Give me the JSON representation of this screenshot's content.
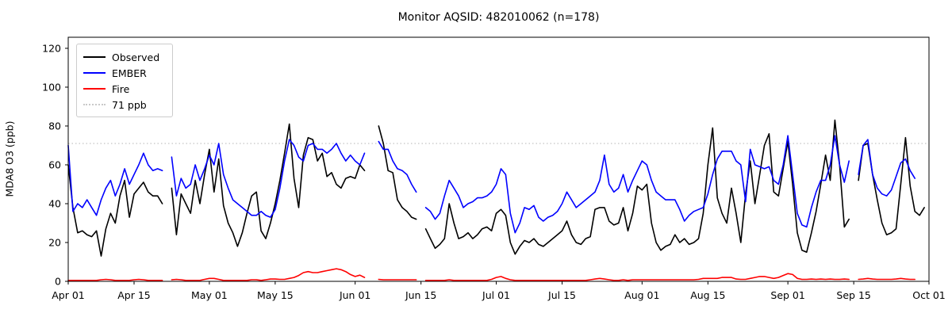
{
  "title": "Monitor AQSID: 482010062 (n=178)",
  "axes": {
    "ylabel": "MDA8 O3 (ppb)",
    "yticks": [
      0,
      20,
      40,
      60,
      80,
      100,
      120
    ],
    "ylim": [
      0,
      125.7
    ],
    "xlim_days": [
      0,
      183
    ]
  },
  "legend": {
    "items": [
      {
        "label": "Observed",
        "color": "#000000",
        "dash": "solid"
      },
      {
        "label": "EMBER",
        "color": "#0000ff",
        "dash": "solid"
      },
      {
        "label": "Fire",
        "color": "#ff0000",
        "dash": "solid"
      },
      {
        "label": "71 ppb",
        "color": "#c9c9c9",
        "dash": "dotted"
      }
    ]
  },
  "chart_data": {
    "type": "line",
    "title": "Monitor AQSID: 482010062 (n=178)",
    "xlabel": "",
    "ylabel": "MDA8 O3 (ppb)",
    "x_unit": "days since Apr 01",
    "xticks": [
      {
        "day": 0,
        "label": "Apr 01"
      },
      {
        "day": 14,
        "label": "Apr 15"
      },
      {
        "day": 30,
        "label": "May 01"
      },
      {
        "day": 44,
        "label": "May 15"
      },
      {
        "day": 61,
        "label": "Jun 01"
      },
      {
        "day": 75,
        "label": "Jun 15"
      },
      {
        "day": 91,
        "label": "Jul 01"
      },
      {
        "day": 105,
        "label": "Jul 15"
      },
      {
        "day": 122,
        "label": "Aug 01"
      },
      {
        "day": 136,
        "label": "Aug 15"
      },
      {
        "day": 153,
        "label": "Sep 01"
      },
      {
        "day": 167,
        "label": "Sep 15"
      },
      {
        "day": 183,
        "label": "Oct 01"
      }
    ],
    "threshold": {
      "value": 71,
      "label": "71 ppb",
      "color": "#c9c9c9",
      "style": "dotted"
    },
    "n_observed": 178,
    "series": [
      {
        "name": "Observed",
        "color": "#000000",
        "width": 1.6,
        "values": [
          60,
          38,
          25,
          26,
          24,
          23,
          26,
          13,
          27,
          35,
          30,
          44,
          52,
          33,
          45,
          48,
          51,
          46,
          44,
          44,
          40,
          null,
          48,
          24,
          45,
          40,
          35,
          52,
          40,
          55,
          68,
          46,
          63,
          39,
          30,
          25,
          18,
          25,
          35,
          44,
          46,
          26,
          22,
          30,
          40,
          52,
          66,
          81,
          53,
          38,
          65,
          74,
          73,
          62,
          66,
          54,
          56,
          50,
          48,
          53,
          54,
          53,
          60,
          57,
          null,
          null,
          80,
          71,
          57,
          56,
          42,
          38,
          36,
          33,
          32,
          null,
          27,
          22,
          17,
          19,
          22,
          40,
          30,
          22,
          23,
          25,
          22,
          24,
          27,
          28,
          26,
          35,
          37,
          34,
          20,
          14,
          18,
          21,
          20,
          22,
          19,
          18,
          20,
          22,
          24,
          26,
          31,
          24,
          20,
          19,
          22,
          23,
          37,
          38,
          38,
          31,
          29,
          30,
          38,
          26,
          35,
          49,
          47,
          50,
          30,
          20,
          16,
          18,
          19,
          24,
          20,
          22,
          19,
          20,
          22,
          35,
          60,
          79,
          43,
          35,
          30,
          48,
          35,
          20,
          45,
          62,
          40,
          55,
          70,
          76,
          46,
          44,
          58,
          72,
          50,
          25,
          16,
          15,
          25,
          36,
          50,
          65,
          52,
          83,
          60,
          28,
          32,
          null,
          52,
          70,
          71,
          55,
          42,
          30,
          24,
          25,
          27,
          50,
          74,
          49,
          36,
          34,
          38
        ]
      },
      {
        "name": "EMBER",
        "color": "#0000ff",
        "width": 1.6,
        "values": [
          70,
          36,
          40,
          38,
          42,
          38,
          34,
          42,
          48,
          52,
          44,
          50,
          58,
          50,
          55,
          60,
          66,
          60,
          57,
          58,
          57,
          null,
          64,
          44,
          53,
          48,
          50,
          60,
          52,
          58,
          65,
          60,
          71,
          55,
          48,
          42,
          40,
          38,
          36,
          34,
          34,
          36,
          34,
          33,
          37,
          48,
          62,
          73,
          70,
          64,
          62,
          70,
          71,
          68,
          68,
          66,
          68,
          71,
          66,
          62,
          65,
          62,
          60,
          66,
          null,
          null,
          72,
          68,
          68,
          62,
          58,
          57,
          55,
          50,
          46,
          null,
          38,
          36,
          32,
          35,
          44,
          52,
          48,
          44,
          38,
          40,
          41,
          43,
          43,
          44,
          46,
          50,
          58,
          55,
          35,
          25,
          30,
          38,
          37,
          39,
          33,
          31,
          33,
          34,
          36,
          40,
          46,
          42,
          38,
          40,
          42,
          44,
          46,
          52,
          65,
          50,
          46,
          48,
          55,
          46,
          52,
          57,
          62,
          60,
          52,
          46,
          44,
          42,
          42,
          42,
          37,
          31,
          34,
          36,
          37,
          38,
          45,
          55,
          63,
          67,
          67,
          67,
          62,
          60,
          41,
          68,
          60,
          59,
          58,
          59,
          52,
          50,
          60,
          75,
          55,
          35,
          29,
          28,
          38,
          46,
          52,
          52,
          60,
          75,
          60,
          51,
          62,
          null,
          55,
          70,
          73,
          55,
          48,
          45,
          44,
          47,
          54,
          61,
          63,
          57,
          53,
          null,
          null
        ]
      },
      {
        "name": "Fire",
        "color": "#ff0000",
        "width": 1.6,
        "values": [
          0.5,
          0.5,
          0.5,
          0.5,
          0.5,
          0.5,
          0.5,
          0.8,
          1.0,
          0.8,
          0.5,
          0.5,
          0.5,
          0.5,
          0.8,
          1.0,
          0.8,
          0.5,
          0.5,
          0.5,
          0.5,
          null,
          0.8,
          1.0,
          0.8,
          0.5,
          0.5,
          0.5,
          0.5,
          1.0,
          1.5,
          1.5,
          1.0,
          0.5,
          0.5,
          0.5,
          0.5,
          0.5,
          0.5,
          0.8,
          0.8,
          0.5,
          0.8,
          1.2,
          1.2,
          1.0,
          1.0,
          1.5,
          2.0,
          3.0,
          4.5,
          5.0,
          4.5,
          4.5,
          5.0,
          5.5,
          6.0,
          6.5,
          6.0,
          5.0,
          3.5,
          2.5,
          3.2,
          2.0,
          null,
          null,
          1.0,
          0.8,
          0.8,
          0.8,
          0.8,
          0.8,
          0.8,
          0.8,
          0.8,
          null,
          0.5,
          0.5,
          0.5,
          0.5,
          0.5,
          0.8,
          0.5,
          0.5,
          0.5,
          0.5,
          0.5,
          0.5,
          0.5,
          0.5,
          1.0,
          2.0,
          2.5,
          1.5,
          0.8,
          0.5,
          0.5,
          0.5,
          0.5,
          0.5,
          0.5,
          0.5,
          0.5,
          0.5,
          0.5,
          0.5,
          0.5,
          0.5,
          0.5,
          0.5,
          0.5,
          0.8,
          1.2,
          1.5,
          1.2,
          0.8,
          0.5,
          0.5,
          0.8,
          0.5,
          0.8,
          0.8,
          0.8,
          0.8,
          0.8,
          0.8,
          0.8,
          0.8,
          0.8,
          0.8,
          0.8,
          0.8,
          0.8,
          0.8,
          1.0,
          1.5,
          1.5,
          1.5,
          1.5,
          2.0,
          2.0,
          2.0,
          1.2,
          1.0,
          1.0,
          1.5,
          2.0,
          2.5,
          2.5,
          2.0,
          1.5,
          2.0,
          3.0,
          4.0,
          3.5,
          1.5,
          1.0,
          1.0,
          1.2,
          1.0,
          1.2,
          1.0,
          1.2,
          1.0,
          1.0,
          1.2,
          1.0,
          null,
          1.0,
          1.2,
          1.5,
          1.2,
          1.0,
          1.0,
          1.0,
          1.0,
          1.2,
          1.5,
          1.2,
          1.0,
          1.0,
          null,
          null
        ]
      }
    ]
  }
}
